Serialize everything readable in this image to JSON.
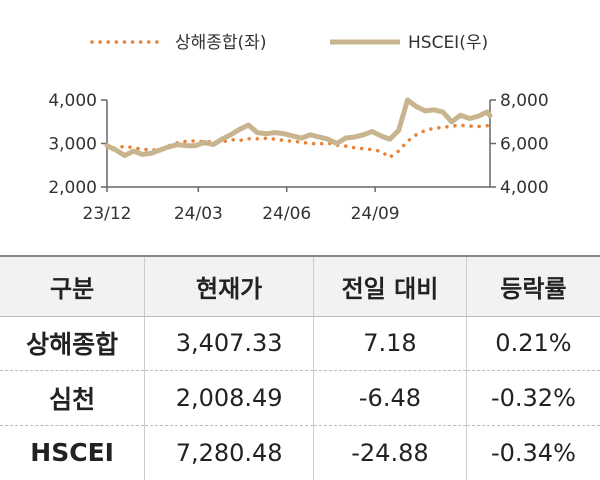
{
  "chart_data": {
    "type": "line",
    "x_ticks": [
      "23/12",
      "24/03",
      "24/06",
      "24/09"
    ],
    "y_left": {
      "ticks": [
        "2,000",
        "3,000",
        "4,000"
      ],
      "range": [
        2000,
        4000
      ]
    },
    "y_right": {
      "ticks": [
        "4,000",
        "6,000",
        "8,000"
      ],
      "range": [
        4000,
        8000
      ]
    },
    "x_range": [
      0,
      13
    ],
    "series": [
      {
        "name": "상해종합(좌)",
        "axis": "left",
        "color": "#e8843a",
        "style": "dotted",
        "x": [
          0,
          0.3,
          0.6,
          0.9,
          1.2,
          1.5,
          1.8,
          2.1,
          2.4,
          2.7,
          3,
          3.3,
          3.6,
          3.9,
          4.2,
          4.5,
          4.8,
          5.1,
          5.4,
          5.7,
          6,
          6.3,
          6.6,
          6.9,
          7.2,
          7.5,
          7.8,
          8.1,
          8.4,
          8.7,
          9,
          9.3,
          9.6,
          9.9,
          10.2,
          10.5,
          10.8,
          11.1,
          11.4,
          11.7,
          12,
          12.3,
          12.6,
          12.9,
          13
        ],
        "y": [
          2975,
          2880,
          2940,
          2900,
          2870,
          2850,
          2860,
          2950,
          3020,
          3050,
          3060,
          3040,
          3040,
          3030,
          3090,
          3070,
          3110,
          3110,
          3120,
          3100,
          3070,
          3050,
          3030,
          3000,
          2990,
          3010,
          2960,
          2940,
          2900,
          2880,
          2860,
          2820,
          2680,
          2830,
          3050,
          3200,
          3300,
          3350,
          3370,
          3400,
          3420,
          3400,
          3390,
          3410,
          3407
        ]
      },
      {
        "name": "HSCEI(우)",
        "axis": "right",
        "color": "#c8b48e",
        "style": "solid",
        "x": [
          0,
          0.3,
          0.6,
          0.9,
          1.2,
          1.5,
          1.8,
          2.1,
          2.4,
          2.7,
          3,
          3.3,
          3.6,
          3.9,
          4.2,
          4.5,
          4.8,
          5.1,
          5.4,
          5.7,
          6,
          6.3,
          6.6,
          6.9,
          7.2,
          7.5,
          7.8,
          8.1,
          8.4,
          8.7,
          9,
          9.3,
          9.6,
          9.9,
          10.2,
          10.5,
          10.8,
          11.1,
          11.4,
          11.7,
          12,
          12.3,
          12.6,
          12.9,
          13
        ],
        "y": [
          5900,
          5700,
          5450,
          5650,
          5500,
          5550,
          5700,
          5850,
          5950,
          5900,
          5900,
          6050,
          5950,
          6200,
          6400,
          6650,
          6850,
          6500,
          6450,
          6500,
          6450,
          6350,
          6250,
          6400,
          6300,
          6200,
          6000,
          6250,
          6300,
          6400,
          6550,
          6350,
          6200,
          6600,
          8000,
          7700,
          7500,
          7550,
          7450,
          7000,
          7300,
          7150,
          7250,
          7450,
          7280
        ]
      }
    ]
  },
  "table": {
    "headers": [
      "구분",
      "현재가",
      "전일 대비",
      "등락률"
    ],
    "rows": [
      [
        "상해종합",
        "3,407.33",
        "7.18",
        "0.21%"
      ],
      [
        "심천",
        "2,008.49",
        "-6.48",
        "-0.32%"
      ],
      [
        "HSCEI",
        "7,280.48",
        "-24.88",
        "-0.34%"
      ]
    ]
  }
}
